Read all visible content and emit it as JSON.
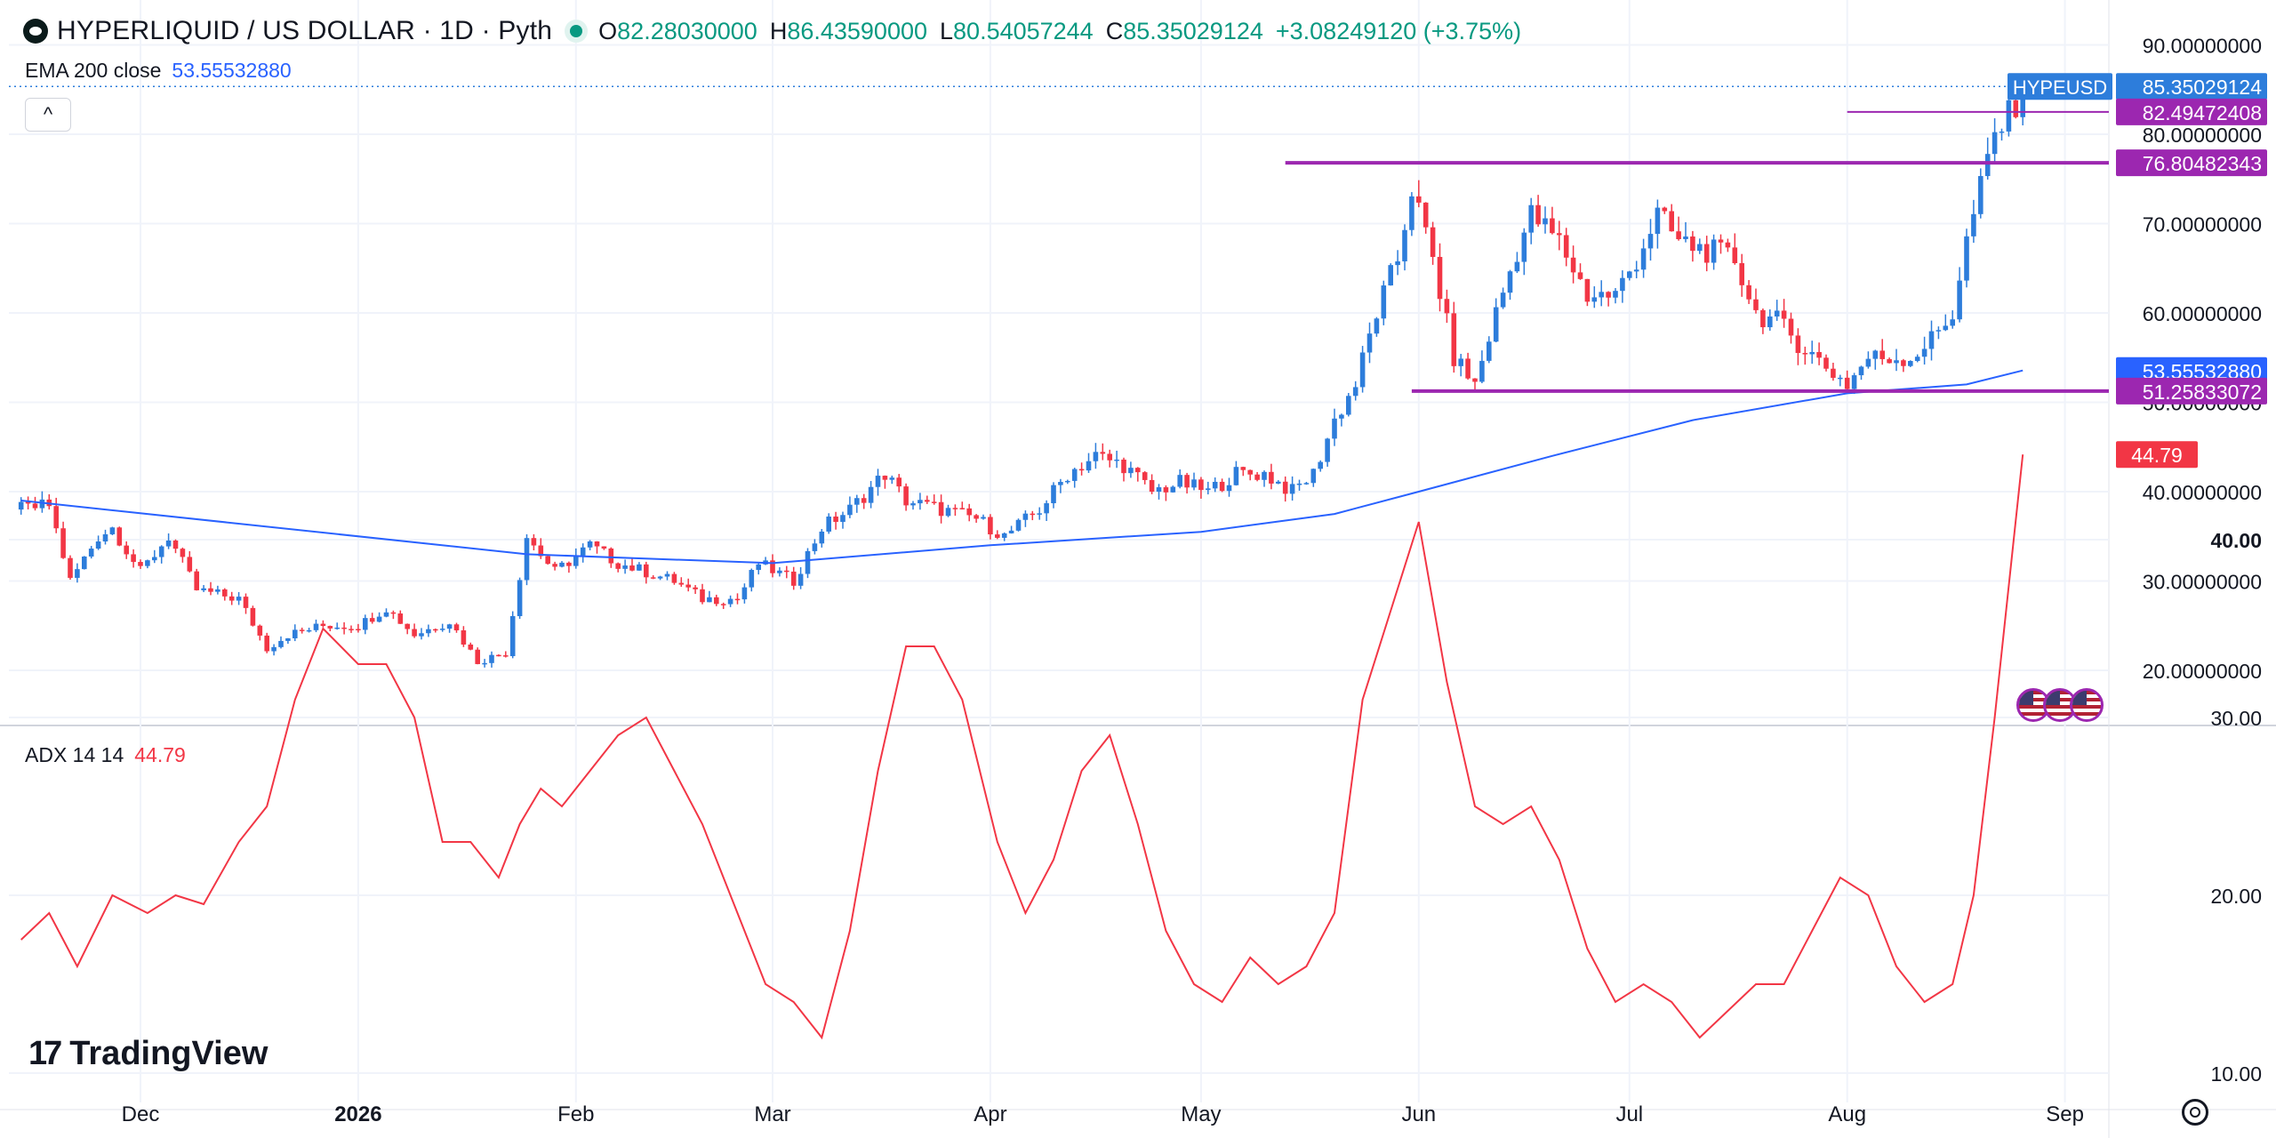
{
  "header": {
    "symbol": "HYPERLIQUID / US DOLLAR · 1D · Pyth",
    "ohlc": [
      {
        "key": "O",
        "value": "82.28030000"
      },
      {
        "key": "H",
        "value": "86.43590000"
      },
      {
        "key": "L",
        "value": "80.54057244"
      },
      {
        "key": "C",
        "value": "85.35029124"
      }
    ],
    "change": "+3.08249120 (+3.75%)",
    "collapse_glyph": "^"
  },
  "indicators": {
    "ema_label": "EMA 200 close",
    "ema_value": "53.55532880",
    "adx_label": "ADX 14 14",
    "adx_value": "44.79"
  },
  "branding": {
    "name": "TradingView",
    "mark": "17"
  },
  "colors": {
    "up": "#2d7ddb",
    "down": "#f23645",
    "ema": "#2962ff",
    "adx": "#f23645",
    "level": "#9c27b0",
    "text": "#131722",
    "grid": "#f0f3fa"
  },
  "icons": [
    "hyperliquid-logo-icon",
    "status-dot-icon",
    "chevron-up-icon",
    "us-flag-icon",
    "tradingview-logo-icon",
    "gear-icon"
  ],
  "chart_data": [
    {
      "type": "candlestick",
      "symbol": "HYPEUSD",
      "x_axis": {
        "ticks": [
          "Dec",
          "2026",
          "Feb",
          "Mar",
          "Apr",
          "May",
          "Jun",
          "Jul",
          "Aug",
          "Sep"
        ]
      },
      "y_axis": {
        "ticks": [
          "20.00000000",
          "30.00000000",
          "40.00000000",
          "50.00000000",
          "60.00000000",
          "70.00000000",
          "80.00000000",
          "90.00000000"
        ],
        "ylim": [
          14,
          92
        ]
      },
      "grid": true,
      "close_path": [
        [
          "Nov 14",
          38
        ],
        [
          "Nov 18",
          38.5
        ],
        [
          "Nov 21",
          30
        ],
        [
          "Nov 25",
          35
        ],
        [
          "Nov 27",
          36
        ],
        [
          "Dec 1",
          31
        ],
        [
          "Dec 5",
          35
        ],
        [
          "Dec 9",
          29
        ],
        [
          "Dec 15",
          28
        ],
        [
          "Dec 19",
          22.5
        ],
        [
          "Dec 22",
          24
        ],
        [
          "Dec 27",
          25
        ],
        [
          "Jan 1",
          25
        ],
        [
          "Jan 5",
          27
        ],
        [
          "Jan 9",
          24
        ],
        [
          "Jan 14",
          25.5
        ],
        [
          "Jan 18",
          21
        ],
        [
          "Jan 22",
          22
        ],
        [
          "Jan 25",
          35
        ],
        [
          "Jan 29",
          31
        ],
        [
          "Feb 3",
          34
        ],
        [
          "Feb 7",
          32
        ],
        [
          "Feb 11",
          31
        ],
        [
          "Feb 15",
          30
        ],
        [
          "Feb 19",
          28
        ],
        [
          "Feb 24",
          28
        ],
        [
          "Feb 27",
          32
        ],
        [
          "Mar 4",
          30
        ],
        [
          "Mar 8",
          36
        ],
        [
          "Mar 12",
          38
        ],
        [
          "Mar 17",
          42
        ],
        [
          "Mar 20",
          39
        ],
        [
          "Mar 25",
          38
        ],
        [
          "Mar 30",
          37
        ],
        [
          "Apr 3",
          35
        ],
        [
          "Apr 8",
          38
        ],
        [
          "Apr 12",
          42
        ],
        [
          "Apr 16",
          44
        ],
        [
          "Apr 20",
          43
        ],
        [
          "Apr 24",
          40
        ],
        [
          "Apr 28",
          41
        ],
        [
          "May 2",
          40
        ],
        [
          "May 6",
          42
        ],
        [
          "May 10",
          42
        ],
        [
          "May 14",
          40
        ],
        [
          "May 17",
          42
        ],
        [
          "May 20",
          48
        ],
        [
          "May 23",
          52
        ],
        [
          "May 26",
          60
        ],
        [
          "May 29",
          66
        ],
        [
          "May 31",
          74
        ],
        [
          "Jun 3",
          66
        ],
        [
          "Jun 6",
          55
        ],
        [
          "Jun 9",
          52
        ],
        [
          "Jun 12",
          60
        ],
        [
          "Jun 15",
          67
        ],
        [
          "Jun 17",
          71
        ],
        [
          "Jun 21",
          68
        ],
        [
          "Jun 25",
          62
        ],
        [
          "Jun 29",
          62
        ],
        [
          "Jul 2",
          66
        ],
        [
          "Jul 5",
          71
        ],
        [
          "Jul 8",
          68
        ],
        [
          "Jul 12",
          67
        ],
        [
          "Jul 16",
          66
        ],
        [
          "Jul 19",
          60
        ],
        [
          "Jul 22",
          59
        ],
        [
          "Jul 26",
          56
        ],
        [
          "Jul 29",
          54
        ],
        [
          "Aug 1",
          52
        ],
        [
          "Aug 4",
          55
        ],
        [
          "Aug 7",
          55
        ],
        [
          "Aug 10",
          55
        ],
        [
          "Aug 13",
          57
        ],
        [
          "Aug 16",
          60
        ],
        [
          "Aug 18",
          68
        ],
        [
          "Aug 20",
          74
        ],
        [
          "Aug 22",
          80
        ],
        [
          "Aug 24",
          82
        ],
        [
          "Aug 26",
          85.35
        ]
      ],
      "ema200": [
        [
          "Nov 14",
          39
        ],
        [
          "Jan 25",
          33
        ],
        [
          "Mar 1",
          32
        ],
        [
          "Apr 1",
          34
        ],
        [
          "May 1",
          35.5
        ],
        [
          "May 20",
          37.5
        ],
        [
          "Jun 1",
          40
        ],
        [
          "Jun 20",
          44
        ],
        [
          "Jul 10",
          48
        ],
        [
          "Aug 1",
          51
        ],
        [
          "Aug 18",
          52
        ],
        [
          "Aug 26",
          53.56
        ]
      ],
      "price_labels": [
        {
          "label": "HYPEUSD",
          "value": "85.35029124",
          "kind": "last"
        },
        {
          "value": "82.49472408",
          "kind": "level"
        },
        {
          "value": "76.80482343",
          "kind": "level"
        },
        {
          "value": "53.55532880",
          "kind": "ema"
        },
        {
          "value": "51.25833072",
          "kind": "level"
        }
      ],
      "horizontal_levels": [
        {
          "value": 82.49472408,
          "from": "Aug 1",
          "to": "Aug 29"
        },
        {
          "value": 76.80482343,
          "from": "May 13",
          "to": "Aug 29"
        },
        {
          "value": 51.25833072,
          "from": "May 31",
          "to": "Aug 29"
        }
      ]
    },
    {
      "type": "line",
      "name": "ADX 14 14",
      "y_axis": {
        "ticks": [
          "10.00",
          "20.00",
          "30.00",
          "40.00"
        ],
        "ylim": [
          8,
          50
        ]
      },
      "last_value_label": "44.79",
      "points": [
        [
          "Nov 14",
          17.5
        ],
        [
          "Nov 18",
          19
        ],
        [
          "Nov 22",
          16
        ],
        [
          "Nov 27",
          20
        ],
        [
          "Dec 2",
          19
        ],
        [
          "Dec 6",
          20
        ],
        [
          "Dec 10",
          19.5
        ],
        [
          "Dec 15",
          23
        ],
        [
          "Dec 19",
          25
        ],
        [
          "Dec 23",
          31
        ],
        [
          "Dec 27",
          35
        ],
        [
          "Jan 1",
          33
        ],
        [
          "Jan 5",
          33
        ],
        [
          "Jan 9",
          30
        ],
        [
          "Jan 13",
          23
        ],
        [
          "Jan 17",
          23
        ],
        [
          "Jan 21",
          21
        ],
        [
          "Jan 24",
          24
        ],
        [
          "Jan 27",
          26
        ],
        [
          "Jan 30",
          25
        ],
        [
          "Feb 3",
          27
        ],
        [
          "Feb 7",
          29
        ],
        [
          "Feb 11",
          30
        ],
        [
          "Feb 15",
          27
        ],
        [
          "Feb 19",
          24
        ],
        [
          "Feb 24",
          19
        ],
        [
          "Feb 28",
          15
        ],
        [
          "Mar 4",
          14
        ],
        [
          "Mar 8",
          12
        ],
        [
          "Mar 12",
          18
        ],
        [
          "Mar 16",
          27
        ],
        [
          "Mar 20",
          34
        ],
        [
          "Mar 24",
          34
        ],
        [
          "Mar 28",
          31
        ],
        [
          "Apr 2",
          23
        ],
        [
          "Apr 6",
          19
        ],
        [
          "Apr 10",
          22
        ],
        [
          "Apr 14",
          27
        ],
        [
          "Apr 18",
          29
        ],
        [
          "Apr 22",
          24
        ],
        [
          "Apr 26",
          18
        ],
        [
          "Apr 30",
          15
        ],
        [
          "May 4",
          14
        ],
        [
          "May 8",
          16.5
        ],
        [
          "May 12",
          15
        ],
        [
          "May 16",
          16
        ],
        [
          "May 20",
          19
        ],
        [
          "May 24",
          31
        ],
        [
          "May 28",
          36
        ],
        [
          "Jun 1",
          41
        ],
        [
          "Jun 5",
          32
        ],
        [
          "Jun 9",
          25
        ],
        [
          "Jun 13",
          24
        ],
        [
          "Jun 17",
          25
        ],
        [
          "Jun 21",
          22
        ],
        [
          "Jun 25",
          17
        ],
        [
          "Jun 29",
          14
        ],
        [
          "Jul 3",
          15
        ],
        [
          "Jul 7",
          14
        ],
        [
          "Jul 11",
          12
        ],
        [
          "Jul 15",
          13.5
        ],
        [
          "Jul 19",
          15
        ],
        [
          "Jul 23",
          15
        ],
        [
          "Jul 27",
          18
        ],
        [
          "Jul 31",
          21
        ],
        [
          "Aug 4",
          20
        ],
        [
          "Aug 8",
          16
        ],
        [
          "Aug 12",
          14
        ],
        [
          "Aug 16",
          15
        ],
        [
          "Aug 19",
          20
        ],
        [
          "Aug 22",
          30
        ],
        [
          "Aug 26",
          44.79
        ]
      ]
    }
  ]
}
